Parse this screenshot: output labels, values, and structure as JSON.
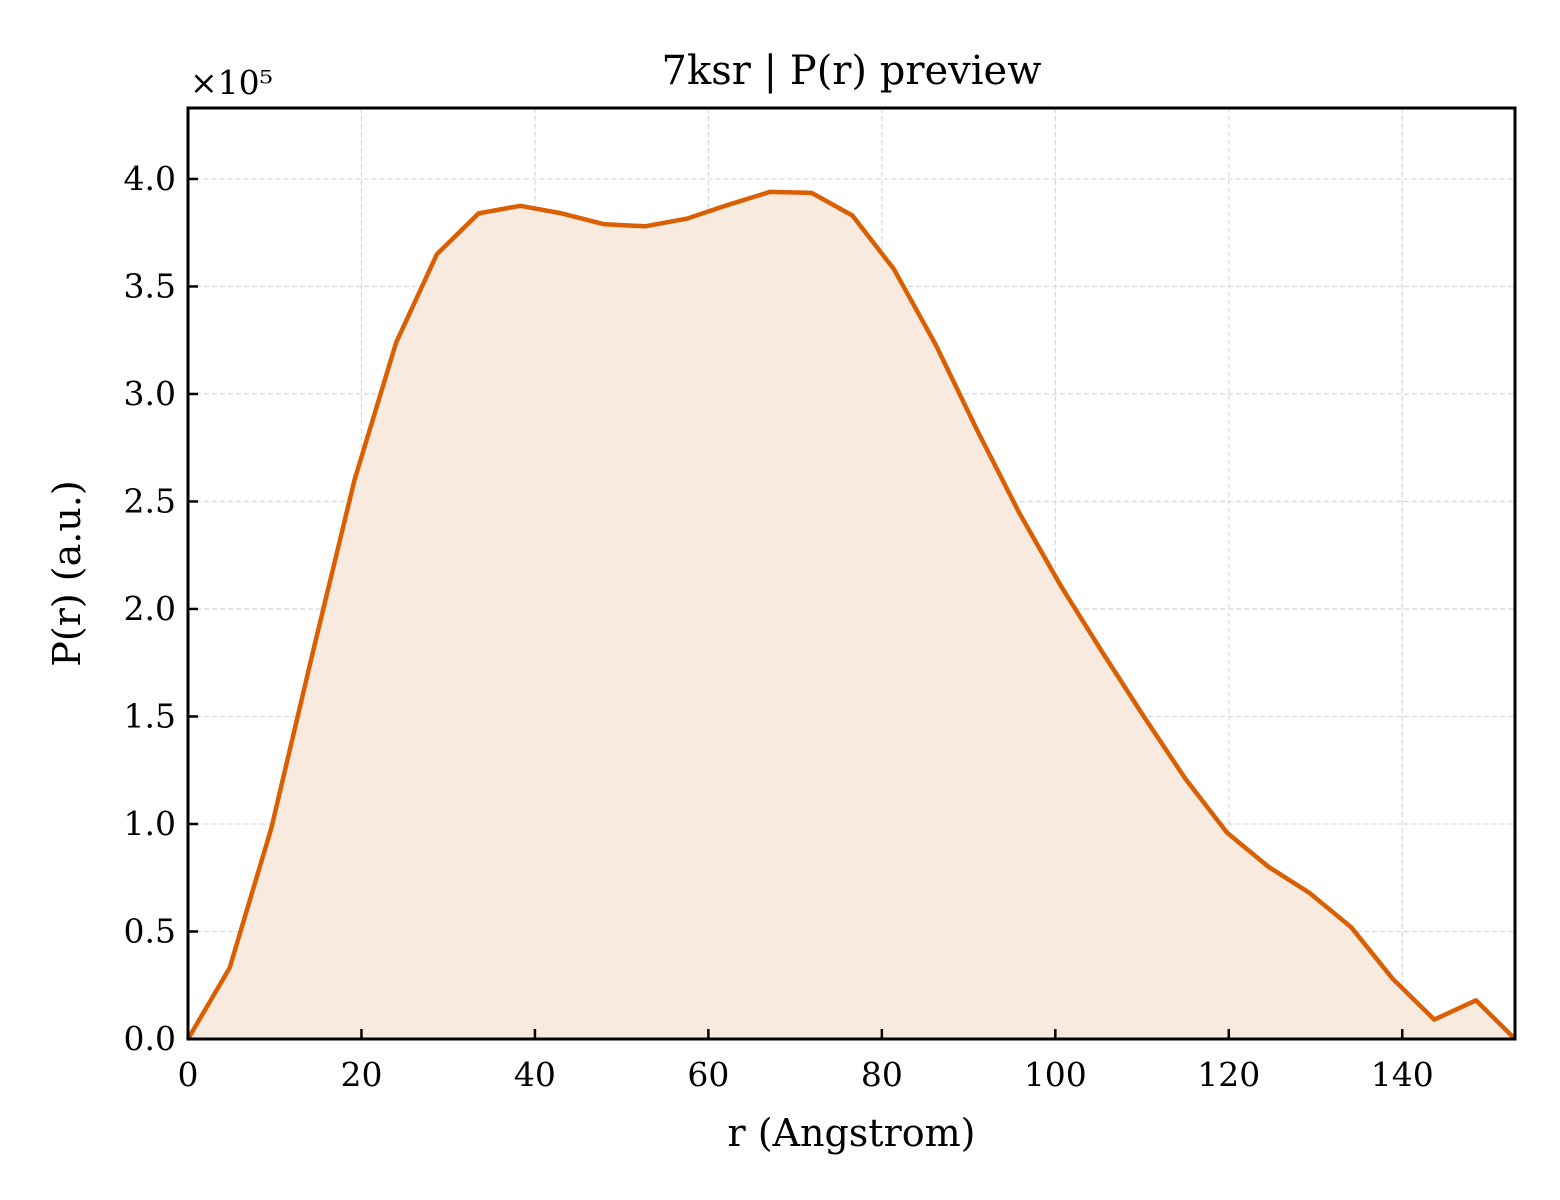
{
  "chart_data": {
    "type": "area",
    "title": "7ksr | P(r) preview",
    "xlabel": "r (Angstrom)",
    "ylabel": "P(r) (a.u.)",
    "y_offset_label": "×10⁵",
    "xlim": [
      0,
      153
    ],
    "ylim": [
      0,
      4.33
    ],
    "xticks": [
      0,
      20,
      40,
      60,
      80,
      100,
      120,
      140
    ],
    "yticks": [
      0.0,
      0.5,
      1.0,
      1.5,
      2.0,
      2.5,
      3.0,
      3.5,
      4.0
    ],
    "grid": true,
    "line_color": "#d95f02",
    "fill_color": "#f9eae0",
    "series": [
      {
        "x": [
          0,
          4.8,
          9.6,
          14.4,
          19.2,
          24.0,
          28.7,
          33.5,
          38.3,
          43.1,
          47.9,
          52.7,
          57.5,
          62.3,
          67.1,
          71.9,
          76.6,
          81.4,
          86.2,
          91.0,
          95.8,
          100.6,
          105.4,
          110.2,
          115.0,
          119.8,
          124.6,
          129.3,
          134.1,
          138.9,
          143.7,
          148.5,
          153.0
        ],
        "y": [
          0.0,
          0.33,
          0.98,
          1.8,
          2.6,
          3.24,
          3.65,
          3.84,
          3.875,
          3.84,
          3.79,
          3.78,
          3.815,
          3.88,
          3.94,
          3.935,
          3.83,
          3.58,
          3.23,
          2.83,
          2.45,
          2.11,
          1.8,
          1.5,
          1.21,
          0.96,
          0.8,
          0.68,
          0.52,
          0.28,
          0.09,
          0.18,
          0.0
        ]
      }
    ]
  }
}
